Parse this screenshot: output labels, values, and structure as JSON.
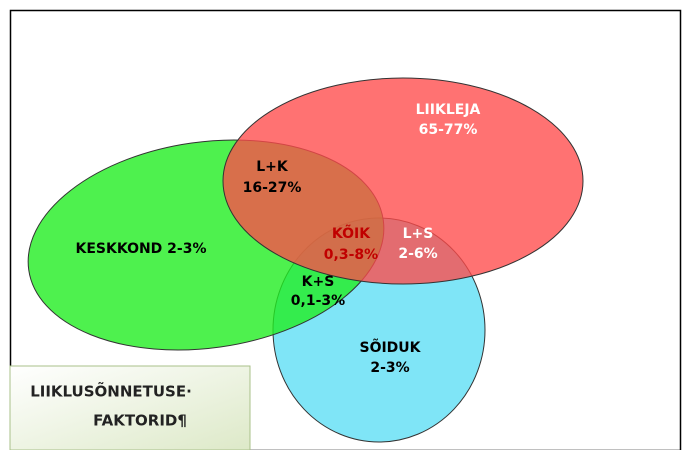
{
  "nodes": [
    {
      "id": "liikleja",
      "lines": [
        "LIIKLEJA",
        "65-77%"
      ]
    },
    {
      "id": "lk",
      "lines": [
        "L+K",
        "16-27%"
      ]
    },
    {
      "id": "keskkond",
      "lines": [
        "KESKKOND 2-3%"
      ]
    },
    {
      "id": "koik",
      "lines": [
        "KÕIK",
        "0,3-8%"
      ]
    },
    {
      "id": "ls",
      "lines": [
        "L+S",
        "2-6%"
      ]
    },
    {
      "id": "ks",
      "lines": [
        "K+S",
        "0,1-3%"
      ]
    },
    {
      "id": "soiduk",
      "lines": [
        "SÕIDUK",
        "2-3%"
      ]
    }
  ],
  "legend": {
    "lines": [
      "LIIKLUSÕNNETUSE·",
      "FAKTORID¶"
    ]
  }
}
